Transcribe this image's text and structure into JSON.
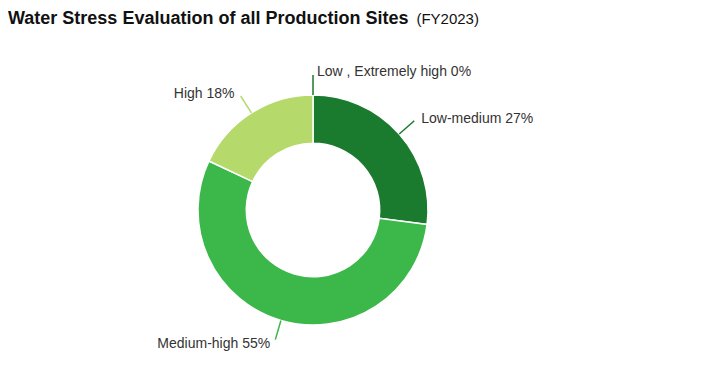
{
  "chart_data": {
    "type": "pie",
    "title": "Water Stress Evaluation of all Production Sites",
    "subtitle": "(FY2023)",
    "categories": [
      "Low , Extremely high",
      "Low-medium",
      "Medium-high",
      "High"
    ],
    "values": [
      0.001,
      27,
      55,
      18
    ],
    "value_labels": [
      "0%",
      "27%",
      "55%",
      "18%"
    ],
    "colors": [
      "#1a7a2e",
      "#1a7a2e",
      "#3cb84a",
      "#b5d96b"
    ]
  }
}
